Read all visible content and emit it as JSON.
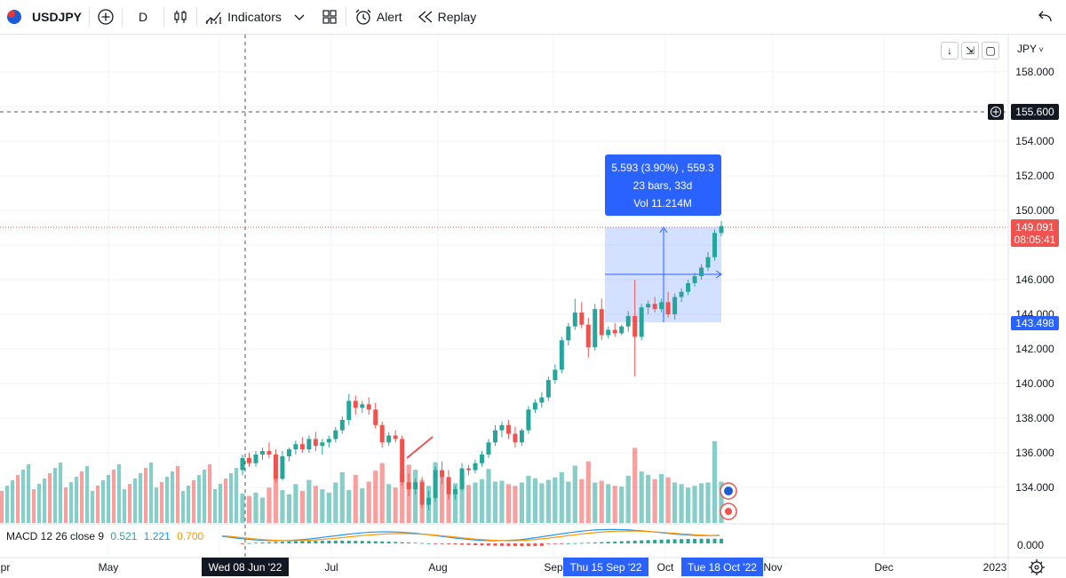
{
  "toolbar": {
    "symbol": "USDJPY",
    "interval": "D",
    "indicators_label": "Indicators",
    "alert_label": "Alert",
    "replay_label": "Replay"
  },
  "price_axis": {
    "currency": "JPY",
    "ticks": [
      "158.000",
      "154.000",
      "152.000",
      "150.000",
      "146.000",
      "144.000",
      "142.000",
      "140.000",
      "138.000",
      "136.000",
      "134.000"
    ],
    "crosshair_price": "155.600",
    "last_price": "149.091",
    "countdown": "08:05:41",
    "range_low_label": "143.498",
    "macd_zero": "0.000"
  },
  "time_axis": {
    "labels": [
      "pr",
      "May",
      "Jul",
      "Aug",
      "Sep",
      "Oct",
      "Nov",
      "Dec",
      "2023"
    ],
    "crosshair_date": "Wed 08 Jun '22",
    "range_start": "Thu 15 Sep '22",
    "range_end": "Tue 18 Oct '22"
  },
  "measure": {
    "line1": "5.593 (3.90%) , 559.3",
    "line2": "23 bars, 33d",
    "line3": "Vol 11.214M"
  },
  "macd": {
    "label": "MACD 12 26 close 9",
    "v1": "0.521",
    "v2": "1.221",
    "v3": "0.700",
    "color1": "#26a69a",
    "color2": "#2196f3",
    "color3": "#ff9800"
  },
  "colors": {
    "up": "#26a69a",
    "down": "#ef5350",
    "accent": "#2962ff"
  },
  "chart_data": {
    "type": "candlestick",
    "symbol": "USDJPY",
    "interval": "D",
    "ylim": [
      133,
      159
    ],
    "candles": [
      [
        135.0,
        135.9,
        134.7,
        135.7
      ],
      [
        135.7,
        136.0,
        135.2,
        135.4
      ],
      [
        135.4,
        136.1,
        135.2,
        135.9
      ],
      [
        135.9,
        136.3,
        135.6,
        136.1
      ],
      [
        136.1,
        136.6,
        135.7,
        135.9
      ],
      [
        135.9,
        136.2,
        134.3,
        134.5
      ],
      [
        134.5,
        136.1,
        134.4,
        135.8
      ],
      [
        135.8,
        136.3,
        135.5,
        136.2
      ],
      [
        136.2,
        136.7,
        135.9,
        136.5
      ],
      [
        136.5,
        136.9,
        136.0,
        136.2
      ],
      [
        136.2,
        137.0,
        136.0,
        136.8
      ],
      [
        136.8,
        137.2,
        136.1,
        136.4
      ],
      [
        136.4,
        136.8,
        135.9,
        136.6
      ],
      [
        136.6,
        137.0,
        136.3,
        136.8
      ],
      [
        136.8,
        137.5,
        136.6,
        137.3
      ],
      [
        137.3,
        138.1,
        137.1,
        137.9
      ],
      [
        137.9,
        139.4,
        137.6,
        139.0
      ],
      [
        139.0,
        139.3,
        138.2,
        138.6
      ],
      [
        138.6,
        139.0,
        138.3,
        138.8
      ],
      [
        138.8,
        139.2,
        138.2,
        138.5
      ],
      [
        138.5,
        138.9,
        137.4,
        137.6
      ],
      [
        137.6,
        137.8,
        136.3,
        136.6
      ],
      [
        136.6,
        137.2,
        136.4,
        137.0
      ],
      [
        137.0,
        137.3,
        136.6,
        136.8
      ],
      [
        136.8,
        137.0,
        134.1,
        134.3
      ],
      [
        134.3,
        134.8,
        133.5,
        133.9
      ],
      [
        133.9,
        134.5,
        133.6,
        134.3
      ],
      [
        134.3,
        134.6,
        132.8,
        133.0
      ],
      [
        133.0,
        133.8,
        132.7,
        133.4
      ],
      [
        133.4,
        135.2,
        133.2,
        135.0
      ],
      [
        135.0,
        135.5,
        134.2,
        134.6
      ],
      [
        134.6,
        135.0,
        133.3,
        133.6
      ],
      [
        133.6,
        134.1,
        133.3,
        133.9
      ],
      [
        133.9,
        135.4,
        133.8,
        135.1
      ],
      [
        135.1,
        135.3,
        134.7,
        135.0
      ],
      [
        135.0,
        135.6,
        134.8,
        135.4
      ],
      [
        135.4,
        136.1,
        135.2,
        135.9
      ],
      [
        135.9,
        136.8,
        135.7,
        136.6
      ],
      [
        136.6,
        137.6,
        136.4,
        137.3
      ],
      [
        137.3,
        137.8,
        136.9,
        137.6
      ],
      [
        137.6,
        137.9,
        136.8,
        137.1
      ],
      [
        137.1,
        137.5,
        136.3,
        136.6
      ],
      [
        136.6,
        137.4,
        136.4,
        137.3
      ],
      [
        137.3,
        138.7,
        137.1,
        138.5
      ],
      [
        138.5,
        139.1,
        138.3,
        138.9
      ],
      [
        138.9,
        139.5,
        138.6,
        139.2
      ],
      [
        139.2,
        140.4,
        139.0,
        140.2
      ],
      [
        140.2,
        141.1,
        140.0,
        140.8
      ],
      [
        140.8,
        142.7,
        140.6,
        142.5
      ],
      [
        142.5,
        143.5,
        142.2,
        143.3
      ],
      [
        143.3,
        144.9,
        143.1,
        144.1
      ],
      [
        144.1,
        144.7,
        143.2,
        143.4
      ],
      [
        143.4,
        143.8,
        141.5,
        142.1
      ],
      [
        142.1,
        144.6,
        141.9,
        144.3
      ],
      [
        144.3,
        144.9,
        142.5,
        142.8
      ],
      [
        142.8,
        143.3,
        142.6,
        143.1
      ],
      [
        143.1,
        143.5,
        142.7,
        142.9
      ],
      [
        142.9,
        143.4,
        142.8,
        143.3
      ],
      [
        143.3,
        144.2,
        143.0,
        143.9
      ],
      [
        143.9,
        146.0,
        140.4,
        142.7
      ],
      [
        142.7,
        144.6,
        142.5,
        144.4
      ],
      [
        144.4,
        144.8,
        144.0,
        144.6
      ],
      [
        144.6,
        145.0,
        144.1,
        144.3
      ],
      [
        144.3,
        144.9,
        144.1,
        144.7
      ],
      [
        144.7,
        145.3,
        143.8,
        144.0
      ],
      [
        144.0,
        145.2,
        143.7,
        145.0
      ],
      [
        145.0,
        145.5,
        144.7,
        145.3
      ],
      [
        145.3,
        146.0,
        145.1,
        145.8
      ],
      [
        145.8,
        146.4,
        145.6,
        146.2
      ],
      [
        146.2,
        146.9,
        146.0,
        146.7
      ],
      [
        146.7,
        147.6,
        146.5,
        147.3
      ],
      [
        147.3,
        148.9,
        147.1,
        148.7
      ],
      [
        148.7,
        149.4,
        148.5,
        149.1
      ]
    ],
    "volume": [
      3.5,
      3.2,
      3.6,
      3.0,
      4.2,
      5.5,
      3.9,
      3.4,
      4.6,
      3.8,
      5.1,
      4.4,
      4.0,
      3.6,
      4.8,
      6.0,
      3.9,
      5.7,
      4.1,
      4.9,
      6.2,
      7.1,
      4.6,
      4.2,
      5.8,
      6.9,
      6.3,
      5.1,
      4.4,
      7.2,
      6.1,
      5.3,
      4.7,
      5.6,
      4.5,
      4.8,
      5.2,
      6.4,
      4.9,
      5.0,
      4.6,
      4.4,
      4.8,
      5.6,
      5.3,
      4.7,
      5.1,
      5.4,
      6.0,
      4.9,
      6.8,
      5.2,
      7.3,
      4.8,
      5.0,
      4.6,
      4.4,
      4.3,
      5.6,
      8.9,
      6.1,
      5.7,
      5.2,
      5.8,
      5.4,
      4.8,
      4.6,
      4.2,
      4.4,
      4.7,
      4.8,
      9.7,
      4.9
    ],
    "measure_range": {
      "from": 143.498,
      "to": 149.091
    }
  }
}
